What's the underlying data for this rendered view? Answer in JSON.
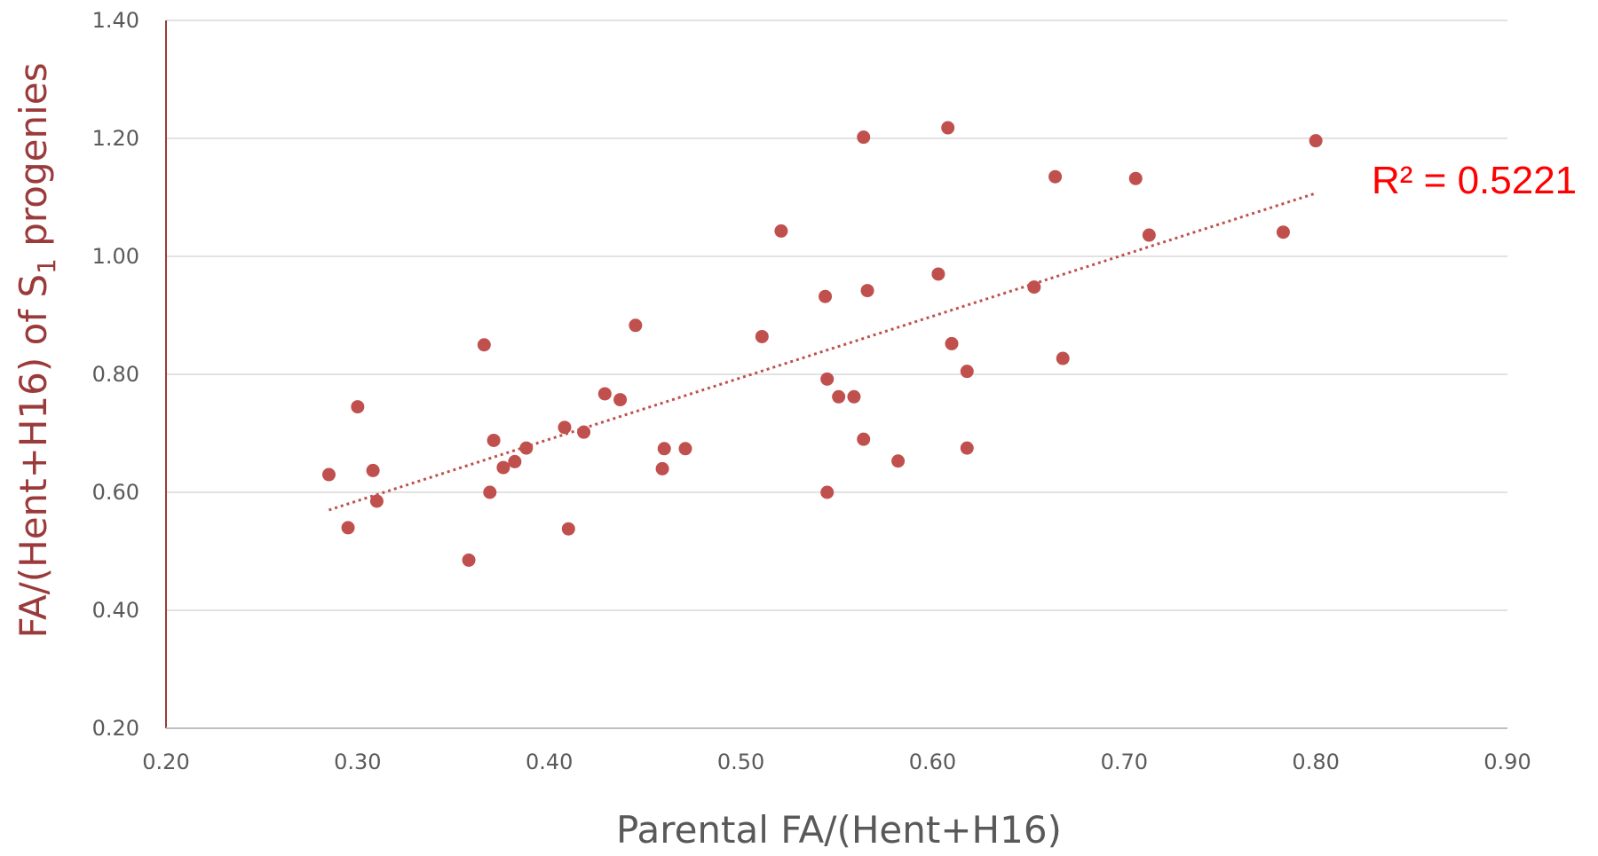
{
  "chart_data": {
    "type": "scatter",
    "xlabel": "Parental FA/(Hent+H16)",
    "ylabel_main": "FA/(Hent+H16) of S",
    "ylabel_sub": "1",
    "ylabel_tail": " progenies",
    "xlim": [
      0.2,
      0.9
    ],
    "ylim": [
      0.2,
      1.4
    ],
    "x_ticks": [
      "0.20",
      "0.30",
      "0.40",
      "0.50",
      "0.60",
      "0.70",
      "0.80",
      "0.90"
    ],
    "y_ticks": [
      "0.20",
      "0.40",
      "0.60",
      "0.80",
      "1.00",
      "1.20",
      "1.40"
    ],
    "grid": "horizontal",
    "marker_color": "#c0504d",
    "trendline": {
      "type": "linear",
      "color": "#c0504d",
      "style": "dotted",
      "x": [
        0.285,
        0.8
      ],
      "y": [
        0.57,
        1.107
      ],
      "r2_label": "R² = 0.5221",
      "r2_color": "#ff0000"
    },
    "points": [
      [
        0.285,
        0.63
      ],
      [
        0.295,
        0.54
      ],
      [
        0.3,
        0.745
      ],
      [
        0.308,
        0.637
      ],
      [
        0.31,
        0.585
      ],
      [
        0.358,
        0.485
      ],
      [
        0.366,
        0.85
      ],
      [
        0.369,
        0.6
      ],
      [
        0.371,
        0.688
      ],
      [
        0.376,
        0.642
      ],
      [
        0.382,
        0.652
      ],
      [
        0.388,
        0.675
      ],
      [
        0.408,
        0.71
      ],
      [
        0.41,
        0.538
      ],
      [
        0.418,
        0.702
      ],
      [
        0.429,
        0.767
      ],
      [
        0.437,
        0.757
      ],
      [
        0.445,
        0.883
      ],
      [
        0.459,
        0.64
      ],
      [
        0.46,
        0.674
      ],
      [
        0.471,
        0.674
      ],
      [
        0.511,
        0.864
      ],
      [
        0.521,
        1.043
      ],
      [
        0.544,
        0.932
      ],
      [
        0.545,
        0.792
      ],
      [
        0.545,
        0.6
      ],
      [
        0.551,
        0.762
      ],
      [
        0.559,
        0.762
      ],
      [
        0.564,
        0.69
      ],
      [
        0.564,
        1.202
      ],
      [
        0.566,
        0.942
      ],
      [
        0.582,
        0.653
      ],
      [
        0.603,
        0.97
      ],
      [
        0.608,
        1.218
      ],
      [
        0.61,
        0.852
      ],
      [
        0.618,
        0.805
      ],
      [
        0.618,
        0.675
      ],
      [
        0.653,
        0.948
      ],
      [
        0.664,
        1.135
      ],
      [
        0.668,
        0.827
      ],
      [
        0.706,
        1.132
      ],
      [
        0.713,
        1.036
      ],
      [
        0.783,
        1.041
      ],
      [
        0.8,
        1.196
      ]
    ]
  }
}
